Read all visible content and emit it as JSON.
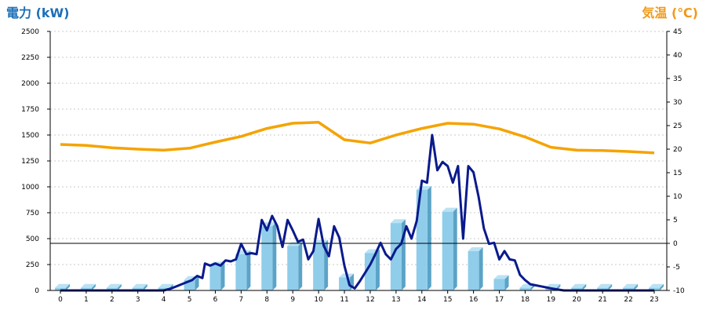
{
  "chart_data": {
    "type": "bar",
    "title_left": "電力 (kW)",
    "title_right": "気温 (℃)",
    "categories": [
      "0",
      "1",
      "2",
      "3",
      "4",
      "5",
      "6",
      "7",
      "8",
      "9",
      "10",
      "11",
      "12",
      "13",
      "14",
      "15",
      "16",
      "17",
      "18",
      "19",
      "20",
      "21",
      "22",
      "23"
    ],
    "y_left": {
      "min": 0,
      "max": 2500,
      "ticks": [
        0,
        250,
        500,
        750,
        1000,
        1250,
        1500,
        1750,
        2000,
        2250,
        2500
      ]
    },
    "y_right": {
      "min": -10,
      "max": 45,
      "ticks": [
        -10,
        -5,
        0,
        5,
        10,
        15,
        20,
        25,
        30,
        35,
        40,
        45
      ]
    },
    "reference_line_temperature": 0,
    "grid": "horizontal-dashed",
    "series": [
      {
        "kind": "bar",
        "color": "#8fcdea",
        "values": [
          25,
          25,
          25,
          25,
          25,
          100,
          240,
          350,
          620,
          430,
          450,
          125,
          360,
          650,
          970,
          760,
          380,
          110,
          25,
          25,
          25,
          25,
          25,
          25
        ]
      },
      {
        "kind": "line",
        "color": "#0a1a8c",
        "points": [
          [
            0,
            0
          ],
          [
            1,
            0
          ],
          [
            2,
            0
          ],
          [
            3,
            0
          ],
          [
            4,
            0
          ],
          [
            4.3,
            20
          ],
          [
            4.6,
            50
          ],
          [
            4.9,
            80
          ],
          [
            5.1,
            100
          ],
          [
            5.3,
            140
          ],
          [
            5.5,
            120
          ],
          [
            5.6,
            260
          ],
          [
            5.8,
            240
          ],
          [
            6.0,
            260
          ],
          [
            6.2,
            240
          ],
          [
            6.4,
            290
          ],
          [
            6.6,
            280
          ],
          [
            6.8,
            300
          ],
          [
            7.0,
            450
          ],
          [
            7.2,
            350
          ],
          [
            7.4,
            360
          ],
          [
            7.6,
            350
          ],
          [
            7.8,
            680
          ],
          [
            8.0,
            580
          ],
          [
            8.2,
            720
          ],
          [
            8.4,
            620
          ],
          [
            8.6,
            420
          ],
          [
            8.8,
            680
          ],
          [
            9.0,
            580
          ],
          [
            9.2,
            470
          ],
          [
            9.4,
            490
          ],
          [
            9.6,
            300
          ],
          [
            9.8,
            380
          ],
          [
            10.0,
            690
          ],
          [
            10.2,
            430
          ],
          [
            10.4,
            330
          ],
          [
            10.6,
            620
          ],
          [
            10.8,
            510
          ],
          [
            11.0,
            240
          ],
          [
            11.2,
            50
          ],
          [
            11.4,
            20
          ],
          [
            11.6,
            90
          ],
          [
            11.8,
            170
          ],
          [
            12.0,
            250
          ],
          [
            12.2,
            350
          ],
          [
            12.4,
            460
          ],
          [
            12.6,
            350
          ],
          [
            12.8,
            300
          ],
          [
            13.0,
            400
          ],
          [
            13.2,
            450
          ],
          [
            13.4,
            620
          ],
          [
            13.6,
            500
          ],
          [
            13.8,
            670
          ],
          [
            14.0,
            1060
          ],
          [
            14.2,
            1040
          ],
          [
            14.4,
            1500
          ],
          [
            14.6,
            1160
          ],
          [
            14.8,
            1240
          ],
          [
            15.0,
            1200
          ],
          [
            15.2,
            1040
          ],
          [
            15.4,
            1200
          ],
          [
            15.6,
            500
          ],
          [
            15.8,
            1200
          ],
          [
            16.0,
            1140
          ],
          [
            16.2,
            900
          ],
          [
            16.4,
            600
          ],
          [
            16.6,
            450
          ],
          [
            16.8,
            460
          ],
          [
            17.0,
            300
          ],
          [
            17.2,
            380
          ],
          [
            17.4,
            300
          ],
          [
            17.6,
            290
          ],
          [
            17.8,
            150
          ],
          [
            18.0,
            100
          ],
          [
            18.2,
            60
          ],
          [
            18.4,
            50
          ],
          [
            18.6,
            40
          ],
          [
            18.8,
            30
          ],
          [
            19.0,
            20
          ],
          [
            19.5,
            0
          ],
          [
            20,
            0
          ],
          [
            21,
            0
          ],
          [
            22,
            0
          ],
          [
            23,
            0
          ]
        ]
      },
      {
        "kind": "line",
        "axis": "right",
        "color": "#f5a300",
        "values": [
          21,
          20.8,
          20.3,
          20,
          19.8,
          20.2,
          21.5,
          22.7,
          24.4,
          25.5,
          25.7,
          22,
          21.3,
          23,
          24.4,
          25.5,
          25.3,
          24.3,
          22.6,
          20.4,
          19.8,
          19.7,
          19.5,
          19.2
        ]
      }
    ]
  }
}
